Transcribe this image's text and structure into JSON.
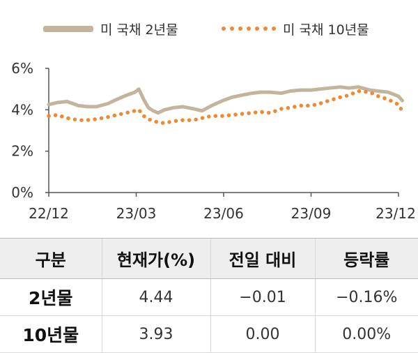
{
  "chart_data": {
    "type": "line",
    "x_ticks": [
      "22/12",
      "23/03",
      "23/06",
      "23/09",
      "23/12"
    ],
    "y_ticks": [
      "0%",
      "2%",
      "4%",
      "6%"
    ],
    "ylim": [
      0,
      6
    ],
    "xlim": [
      "2022-12",
      "2023-12"
    ],
    "legend_position": "top",
    "grid": false,
    "series": [
      {
        "name": "미 국채 2년물",
        "color": "#c2b59b",
        "style": "solid",
        "x": [
          "2022-12-01",
          "2022-12-10",
          "2022-12-20",
          "2023-01-01",
          "2023-01-10",
          "2023-01-20",
          "2023-02-01",
          "2023-02-10",
          "2023-02-20",
          "2023-03-01",
          "2023-03-05",
          "2023-03-10",
          "2023-03-15",
          "2023-03-20",
          "2023-03-25",
          "2023-04-01",
          "2023-04-10",
          "2023-04-20",
          "2023-05-01",
          "2023-05-10",
          "2023-05-20",
          "2023-06-01",
          "2023-06-10",
          "2023-06-20",
          "2023-07-01",
          "2023-07-10",
          "2023-07-20",
          "2023-08-01",
          "2023-08-10",
          "2023-08-20",
          "2023-09-01",
          "2023-09-10",
          "2023-09-20",
          "2023-10-01",
          "2023-10-10",
          "2023-10-20",
          "2023-11-01",
          "2023-11-10",
          "2023-11-20",
          "2023-12-01",
          "2023-12-05"
        ],
        "values": [
          4.25,
          4.35,
          4.4,
          4.2,
          4.15,
          4.15,
          4.3,
          4.5,
          4.7,
          4.85,
          5.0,
          4.5,
          4.1,
          3.95,
          3.85,
          4.0,
          4.1,
          4.15,
          4.05,
          3.95,
          4.2,
          4.45,
          4.6,
          4.7,
          4.8,
          4.85,
          4.85,
          4.8,
          4.9,
          4.95,
          4.95,
          5.0,
          5.05,
          5.1,
          5.05,
          5.1,
          4.95,
          4.9,
          4.85,
          4.65,
          4.44
        ]
      },
      {
        "name": "미 국채 10년물",
        "color": "#ee8a33",
        "style": "dotted",
        "x": [
          "2022-12-01",
          "2022-12-10",
          "2022-12-20",
          "2023-01-01",
          "2023-01-10",
          "2023-01-20",
          "2023-02-01",
          "2023-02-10",
          "2023-02-20",
          "2023-03-01",
          "2023-03-05",
          "2023-03-10",
          "2023-03-15",
          "2023-03-20",
          "2023-03-25",
          "2023-04-01",
          "2023-04-10",
          "2023-04-20",
          "2023-05-01",
          "2023-05-10",
          "2023-05-20",
          "2023-06-01",
          "2023-06-10",
          "2023-06-20",
          "2023-07-01",
          "2023-07-10",
          "2023-07-20",
          "2023-08-01",
          "2023-08-10",
          "2023-08-20",
          "2023-09-01",
          "2023-09-10",
          "2023-09-20",
          "2023-10-01",
          "2023-10-10",
          "2023-10-20",
          "2023-11-01",
          "2023-11-10",
          "2023-11-20",
          "2023-12-01",
          "2023-12-05"
        ],
        "values": [
          3.7,
          3.75,
          3.6,
          3.5,
          3.5,
          3.55,
          3.65,
          3.75,
          3.85,
          3.95,
          4.0,
          3.7,
          3.55,
          3.45,
          3.4,
          3.35,
          3.45,
          3.5,
          3.5,
          3.6,
          3.7,
          3.7,
          3.75,
          3.8,
          3.85,
          3.9,
          3.85,
          4.05,
          4.1,
          4.2,
          4.2,
          4.3,
          4.45,
          4.6,
          4.7,
          4.9,
          4.85,
          4.65,
          4.5,
          4.25,
          3.93
        ]
      }
    ]
  },
  "table": {
    "headers": [
      "구분",
      "현재가(%)",
      "전일 대비",
      "등락률"
    ],
    "rows": [
      {
        "name": "2년물",
        "price": "4.44",
        "change": "−0.01",
        "rate": "−0.16%"
      },
      {
        "name": "10년물",
        "price": "3.93",
        "change": "0.00",
        "rate": "0.00%"
      }
    ]
  }
}
